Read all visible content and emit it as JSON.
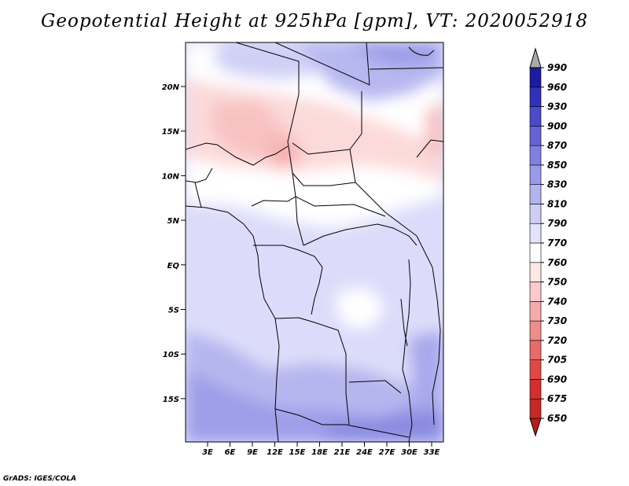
{
  "title": "Geopotential Height at 925hPa [gpm], VT: 2020052918",
  "credit": "GrADS: IGES/COLA",
  "map": {
    "lat_labels": [
      "20N",
      "15N",
      "10N",
      "5N",
      "EQ",
      "5S",
      "10S",
      "15S"
    ],
    "lon_labels": [
      "3E",
      "6E",
      "9E",
      "12E",
      "15E",
      "18E",
      "21E",
      "24E",
      "27E",
      "30E",
      "33E"
    ]
  },
  "colorbar": {
    "levels": [
      "650",
      "675",
      "690",
      "705",
      "720",
      "730",
      "740",
      "750",
      "760",
      "770",
      "790",
      "810",
      "830",
      "850",
      "870",
      "900",
      "930",
      "960",
      "990"
    ],
    "colors": [
      "#b71c1c",
      "#c62828",
      "#d32f2f",
      "#e04848",
      "#e86a6a",
      "#ef8c8c",
      "#f5aaaa",
      "#fbcaca",
      "#fde6e6",
      "#ffffff",
      "#e2e2fa",
      "#cdcdf5",
      "#b3b3ef",
      "#9a9ae8",
      "#8080e0",
      "#6464d6",
      "#4a4acb",
      "#3030b8",
      "#1c1ca0",
      "#aaaaaa"
    ]
  }
}
